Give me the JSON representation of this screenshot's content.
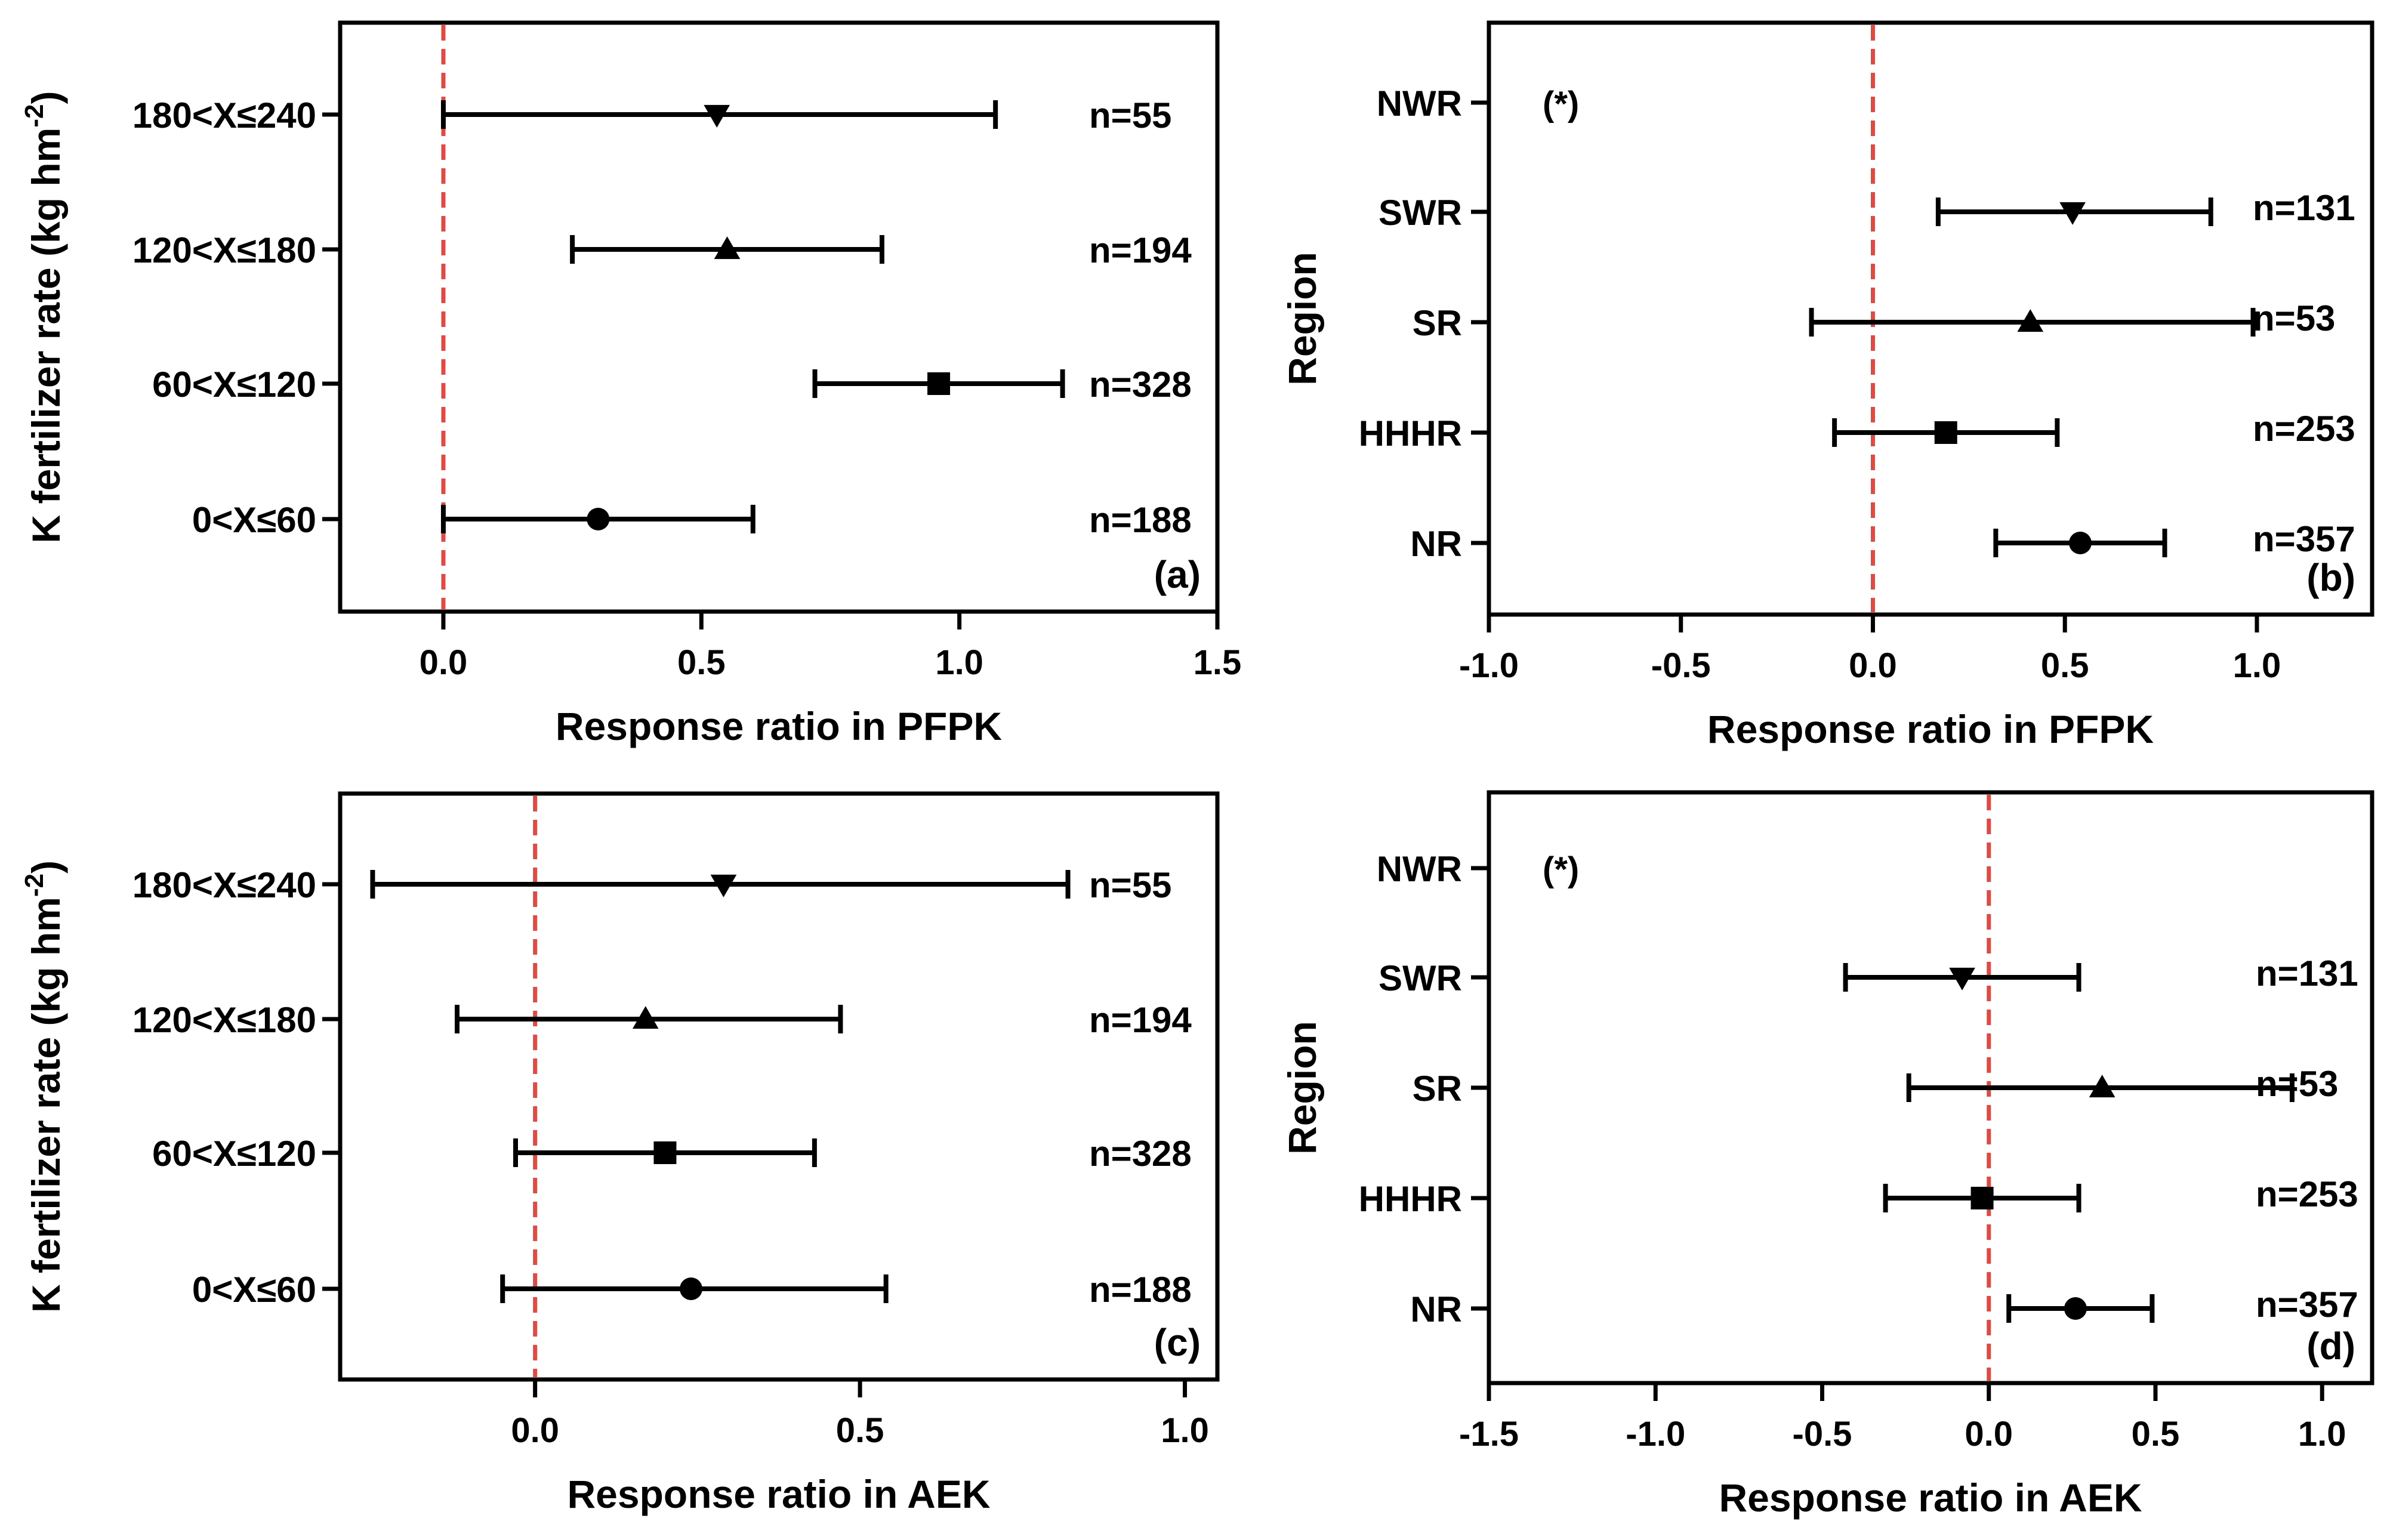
{
  "colors": {
    "ink": "#000000",
    "reference_line": "#e8473f",
    "background": "#ffffff"
  },
  "chart_data": [
    {
      "type": "scatter",
      "panel_label": "(a)",
      "title": "",
      "xlabel": "Response ratio in PFPK",
      "ylabel": "K fertilizer rate (kg hm",
      "ylabel_unit_sup": "-2",
      "ylabel_close": ")",
      "xlim": [
        -0.2,
        1.5
      ],
      "xticks": [
        0.0,
        0.5,
        1.0,
        1.5
      ],
      "xtick_labels": [
        "0.0",
        "0.5",
        "1.0",
        "1.5"
      ],
      "reference_x": 0,
      "categories": [
        "180<X≤240",
        "120<X≤180",
        "60<X≤120",
        "0<X≤60"
      ],
      "points": [
        {
          "category": "180<X≤240",
          "marker": "triangle-down",
          "mean": 0.53,
          "low": 0.0,
          "high": 1.07,
          "n_label": "n=55"
        },
        {
          "category": "120<X≤180",
          "marker": "triangle-up",
          "mean": 0.55,
          "low": 0.25,
          "high": 0.85,
          "n_label": "n=194"
        },
        {
          "category": "60<X≤120",
          "marker": "square",
          "mean": 0.96,
          "low": 0.72,
          "high": 1.2,
          "n_label": "n=328"
        },
        {
          "category": "0<X≤60",
          "marker": "circle",
          "mean": 0.3,
          "low": 0.0,
          "high": 0.6,
          "n_label": "n=188"
        }
      ]
    },
    {
      "type": "scatter",
      "panel_label": "(b)",
      "title": "",
      "xlabel": "Response ratio in PFPK",
      "ylabel": "Region",
      "xlim": [
        -1.0,
        1.3
      ],
      "xticks": [
        -1.0,
        -0.5,
        0.0,
        0.5,
        1.0
      ],
      "xtick_labels": [
        "-1.0",
        "-0.5",
        "0.0",
        "0.5",
        "1.0"
      ],
      "reference_x": 0,
      "categories": [
        "NWR",
        "SWR",
        "SR",
        "HHHR",
        "NR"
      ],
      "annotation": "(*)",
      "points": [
        {
          "category": "SWR",
          "marker": "triangle-down",
          "mean": 0.52,
          "low": 0.17,
          "high": 0.88,
          "n_label": "n=131"
        },
        {
          "category": "SR",
          "marker": "triangle-up",
          "mean": 0.41,
          "low": -0.16,
          "high": 0.99,
          "n_label": "n=53"
        },
        {
          "category": "HHHR",
          "marker": "square",
          "mean": 0.19,
          "low": -0.1,
          "high": 0.48,
          "n_label": "n=253"
        },
        {
          "category": "NR",
          "marker": "circle",
          "mean": 0.54,
          "low": 0.32,
          "high": 0.76,
          "n_label": "n=357"
        }
      ]
    },
    {
      "type": "scatter",
      "panel_label": "(c)",
      "title": "",
      "xlabel": "Response ratio in AEK",
      "ylabel": "K fertilizer rate (kg hm",
      "ylabel_unit_sup": "-2",
      "ylabel_close": ")",
      "xlim": [
        -0.3,
        1.05
      ],
      "xticks": [
        0.0,
        0.5,
        1.0
      ],
      "xtick_labels": [
        "0.0",
        "0.5",
        "1.0"
      ],
      "reference_x": 0,
      "categories": [
        "180<X≤240",
        "120<X≤180",
        "60<X≤120",
        "0<X≤60"
      ],
      "points": [
        {
          "category": "180<X≤240",
          "marker": "triangle-down",
          "mean": 0.29,
          "low": -0.25,
          "high": 0.82,
          "n_label": "n=55"
        },
        {
          "category": "120<X≤180",
          "marker": "triangle-up",
          "mean": 0.17,
          "low": -0.12,
          "high": 0.47,
          "n_label": "n=194"
        },
        {
          "category": "60<X≤120",
          "marker": "square",
          "mean": 0.2,
          "low": -0.03,
          "high": 0.43,
          "n_label": "n=328"
        },
        {
          "category": "0<X≤60",
          "marker": "circle",
          "mean": 0.24,
          "low": -0.05,
          "high": 0.54,
          "n_label": "n=188"
        }
      ]
    },
    {
      "type": "scatter",
      "panel_label": "(d)",
      "title": "",
      "xlabel": "Response ratio in AEK",
      "ylabel": "Region",
      "xlim": [
        -1.5,
        1.15
      ],
      "xticks": [
        -1.5,
        -1.0,
        -0.5,
        0.0,
        0.5,
        1.0
      ],
      "xtick_labels": [
        "-1.5",
        "-1.0",
        "-0.5",
        "0.0",
        "0.5",
        "1.0"
      ],
      "reference_x": 0,
      "categories": [
        "NWR",
        "SWR",
        "SR",
        "HHHR",
        "NR"
      ],
      "annotation": "(*)",
      "points": [
        {
          "category": "SWR",
          "marker": "triangle-down",
          "mean": -0.08,
          "low": -0.43,
          "high": 0.27,
          "n_label": "n=131"
        },
        {
          "category": "SR",
          "marker": "triangle-up",
          "mean": 0.34,
          "low": -0.24,
          "high": 0.91,
          "n_label": "n=53"
        },
        {
          "category": "HHHR",
          "marker": "square",
          "mean": -0.02,
          "low": -0.31,
          "high": 0.27,
          "n_label": "n=253"
        },
        {
          "category": "NR",
          "marker": "circle",
          "mean": 0.26,
          "low": 0.06,
          "high": 0.49,
          "n_label": "n=357"
        }
      ]
    }
  ]
}
